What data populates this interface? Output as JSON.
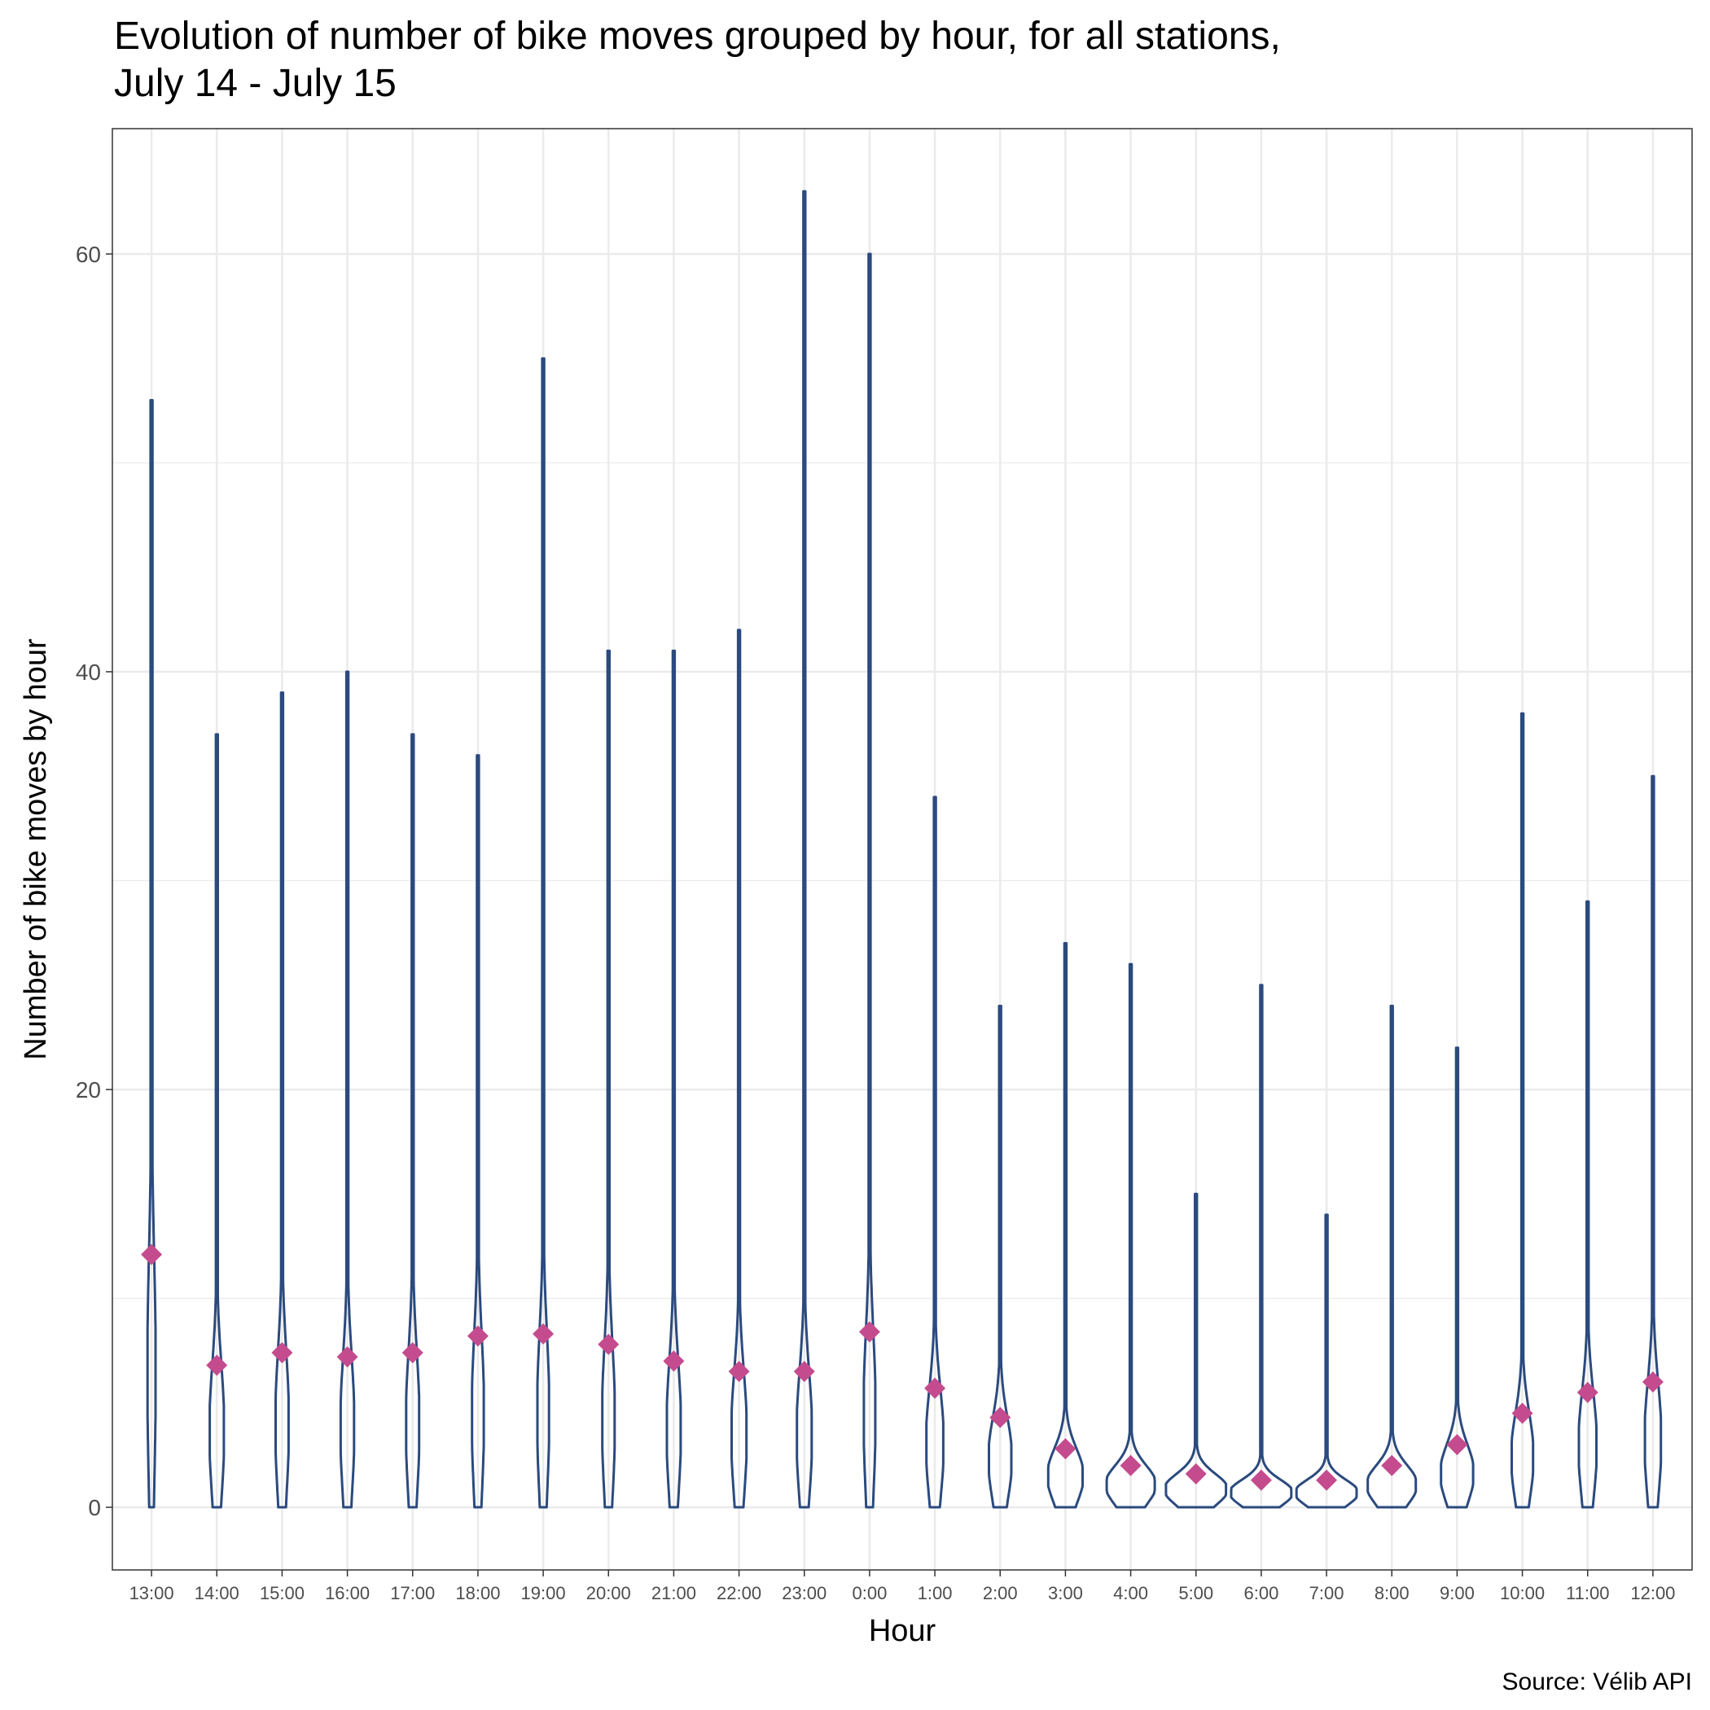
{
  "colors": {
    "violin_outline": "#2b4a7e",
    "mean_marker": "#c44c8e",
    "grid": "#ebebeb",
    "panel_border": "#333333",
    "background": "#ffffff"
  },
  "chart_data": {
    "type": "violin",
    "title_line1": "Evolution of number of bike moves grouped by hour, for all stations,",
    "title_line2": "July 14 - July 15",
    "xlabel": "Hour",
    "ylabel": "Number of bike moves by hour",
    "caption": "Source: Vélib API",
    "ylim": [
      -3,
      66
    ],
    "yticks": [
      0,
      20,
      40,
      60
    ],
    "grid": true,
    "legend": "none",
    "categories": [
      "13:00",
      "14:00",
      "15:00",
      "16:00",
      "17:00",
      "18:00",
      "19:00",
      "20:00",
      "21:00",
      "22:00",
      "23:00",
      "0:00",
      "1:00",
      "2:00",
      "3:00",
      "4:00",
      "5:00",
      "6:00",
      "7:00",
      "8:00",
      "9:00",
      "10:00",
      "11:00",
      "12:00"
    ],
    "max_values": [
      53,
      37,
      39,
      40,
      37,
      36,
      55,
      41,
      41,
      42,
      63,
      60,
      34,
      24,
      27,
      26,
      15,
      25,
      14,
      24,
      22,
      38,
      29,
      35
    ],
    "min_values": [
      0,
      0,
      0,
      0,
      0,
      0,
      0,
      0,
      0,
      0,
      0,
      0,
      0,
      0,
      0,
      0,
      0,
      0,
      0,
      0,
      0,
      0,
      0,
      0
    ],
    "mean_values": [
      12.1,
      6.8,
      7.4,
      7.2,
      7.4,
      8.2,
      8.3,
      7.8,
      7.0,
      6.5,
      6.5,
      8.4,
      5.7,
      4.3,
      2.8,
      2.0,
      1.6,
      1.3,
      1.3,
      2.0,
      3.0,
      4.5,
      5.5,
      6.0
    ]
  }
}
